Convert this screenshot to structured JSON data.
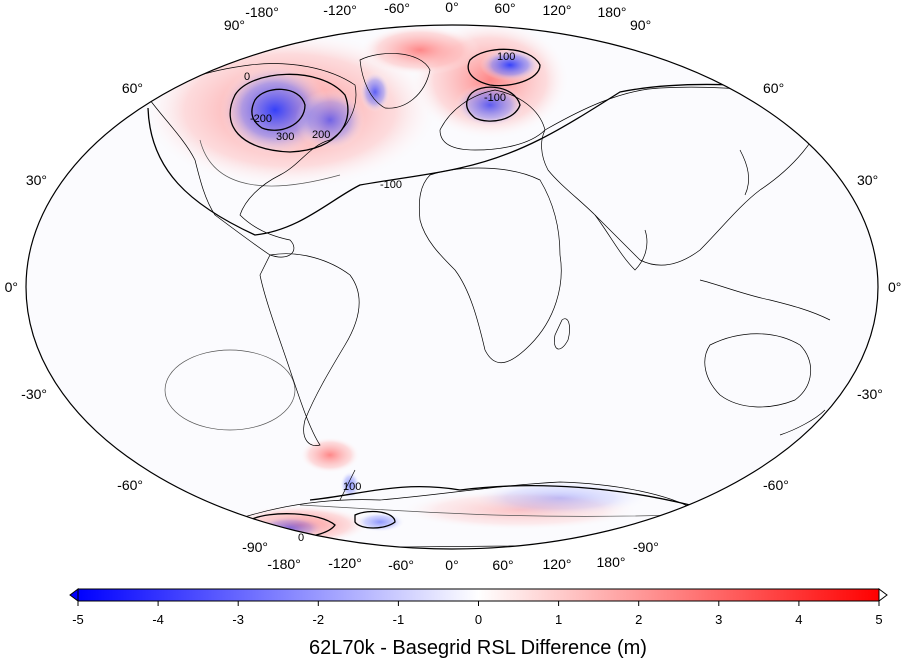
{
  "map": {
    "projection": "Winkel tripel / Robinson-style global",
    "top_lon_labels": [
      "-180°",
      "-120°",
      "-60°",
      "0°",
      "60°",
      "120°",
      "180°"
    ],
    "bottom_lon_labels": [
      "-180°",
      "-120°",
      "-60°",
      "0°",
      "60°",
      "120°",
      "180°"
    ],
    "left_lat_labels": [
      "90°",
      "60°",
      "30°",
      "0°",
      "-30°",
      "-60°",
      "-90°"
    ],
    "right_lat_labels": [
      "90°",
      "60°",
      "30°",
      "0°",
      "-30°",
      "-60°",
      "-90°"
    ],
    "contour_labels": [
      "100",
      "0",
      "-100",
      "-200",
      "300",
      "200",
      "-100",
      "0",
      "100"
    ],
    "colors": {
      "negative": "#0000ff",
      "neutral": "#ffffff",
      "positive": "#ff0000",
      "coast": "#000000"
    }
  },
  "colorbar": {
    "ticks": [
      "-5",
      "-4",
      "-3",
      "-2",
      "-1",
      "0",
      "1",
      "2",
      "3",
      "4",
      "5"
    ],
    "title": "62L70k - Basegrid RSL Difference (m)",
    "min": -5,
    "max": 5
  }
}
